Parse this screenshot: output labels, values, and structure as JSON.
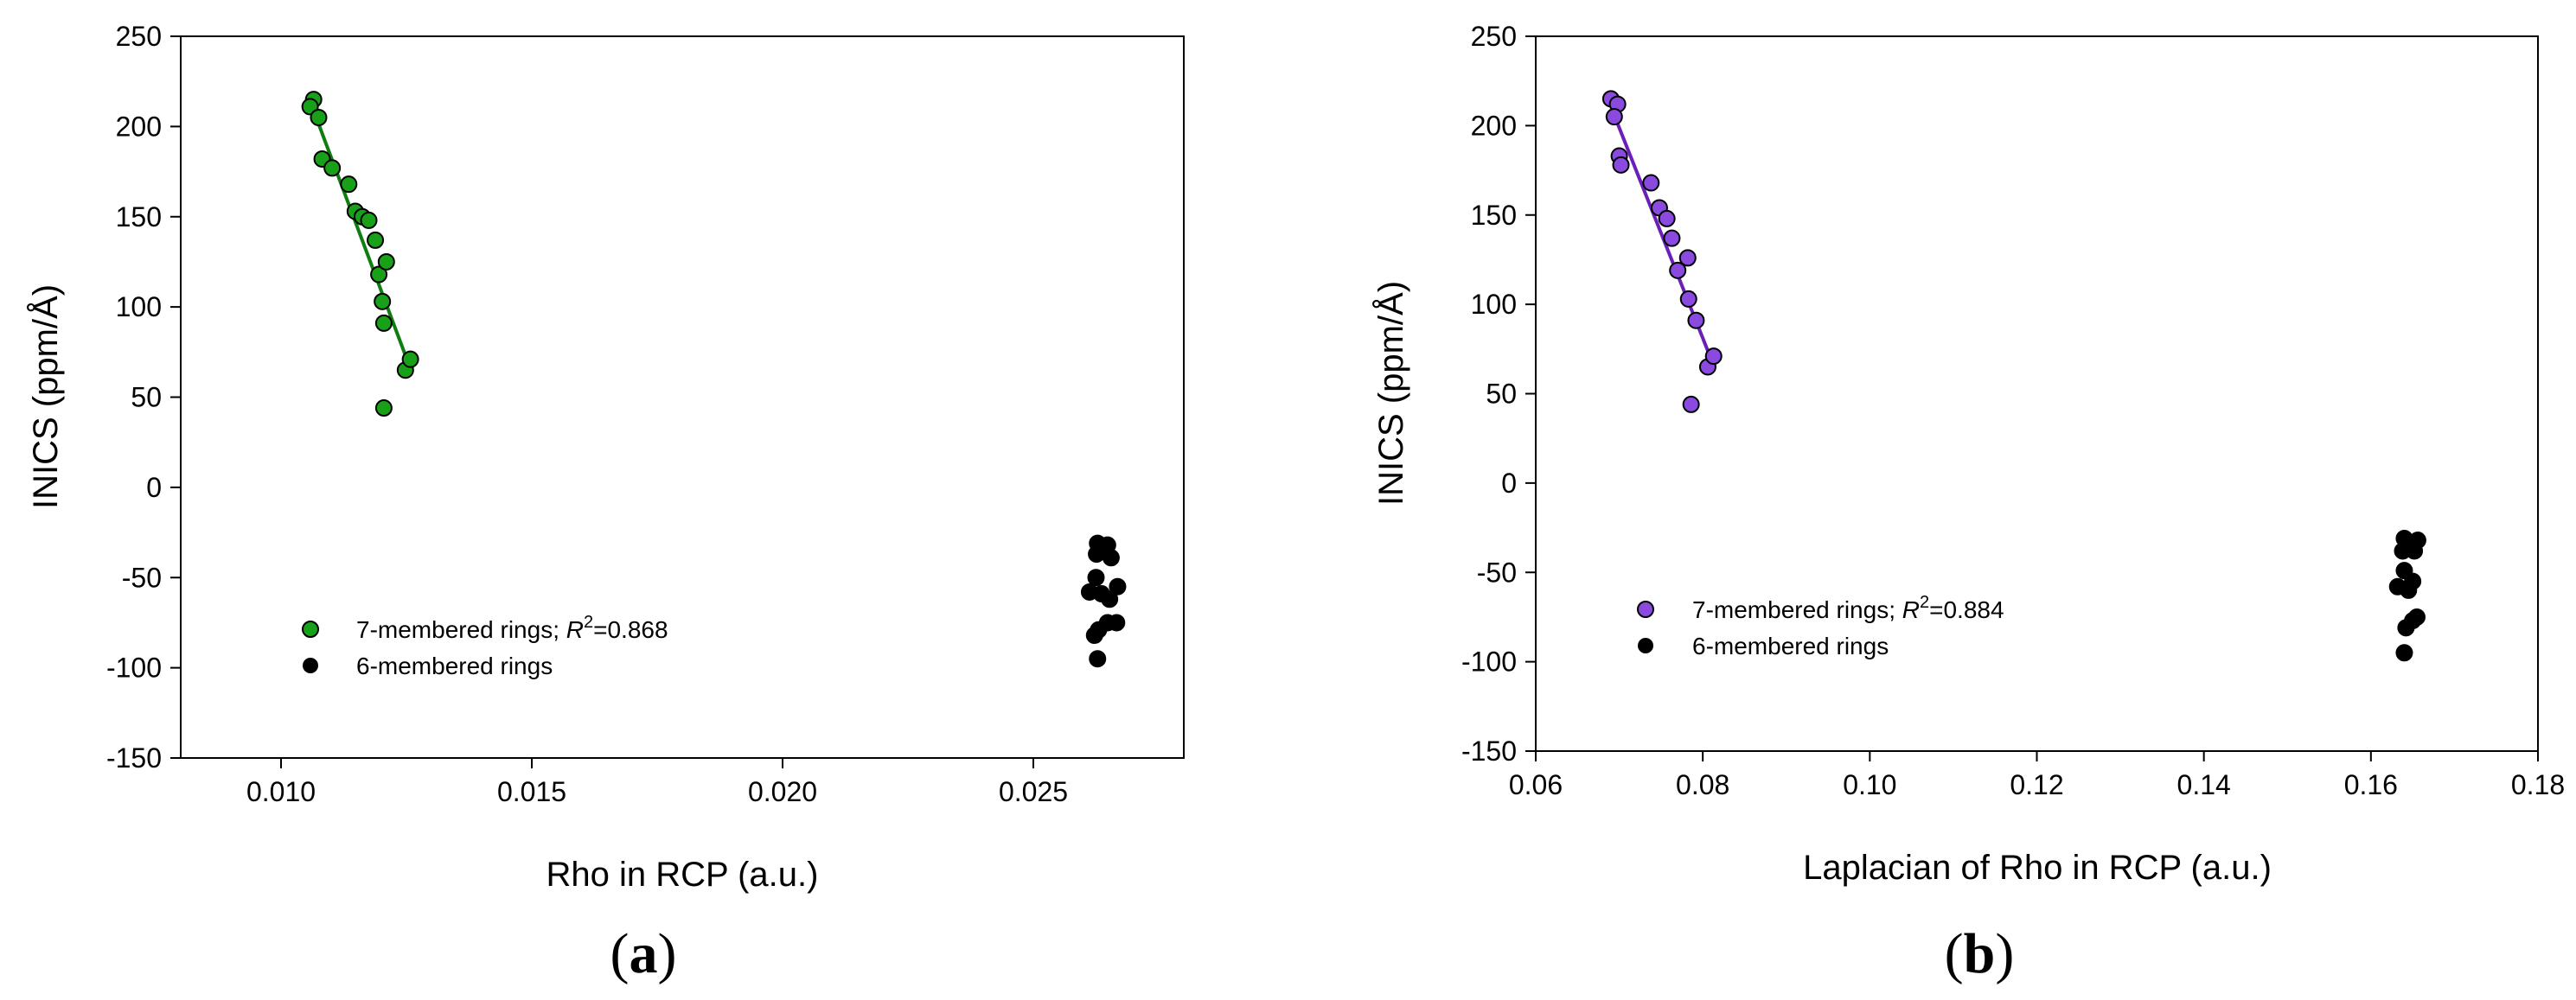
{
  "panels": {
    "a": {
      "label_open": "(",
      "label_letter": "a",
      "label_close": ")"
    },
    "b": {
      "label_open": "(",
      "label_letter": "b",
      "label_close": ")"
    }
  },
  "chart_data": [
    {
      "type": "scatter",
      "panel": "a",
      "xlabel": "Rho in RCP (a.u.)",
      "ylabel": "INICS (ppm/Å)",
      "xlim": [
        0.008,
        0.028
      ],
      "ylim": [
        -150,
        250
      ],
      "xticks": [
        0.01,
        0.015,
        0.02,
        0.025
      ],
      "xtick_labels": [
        "0.010",
        "0.015",
        "0.020",
        "0.025"
      ],
      "yticks": [
        -150,
        -100,
        -50,
        0,
        50,
        100,
        150,
        200,
        250
      ],
      "ytick_labels": [
        "-150",
        "-100",
        "-50",
        "0",
        "50",
        "100",
        "150",
        "200",
        "250"
      ],
      "legend_position": "lower-left",
      "series": [
        {
          "name": "7-membered rings",
          "legend_label": "7-membered rings; ",
          "r2_label": "R",
          "r2_sup": "2",
          "r2_value": "=0.868",
          "color": "#18a018",
          "fit_color": "#0f7d0f",
          "points": [
            [
              0.01065,
              215
            ],
            [
              0.01058,
              211
            ],
            [
              0.01075,
              205
            ],
            [
              0.01082,
              182
            ],
            [
              0.01102,
              177
            ],
            [
              0.01135,
              168
            ],
            [
              0.01148,
              153
            ],
            [
              0.01162,
              150
            ],
            [
              0.01175,
              148
            ],
            [
              0.01188,
              137
            ],
            [
              0.01195,
              118
            ],
            [
              0.0121,
              125
            ],
            [
              0.01202,
              103
            ],
            [
              0.01205,
              91
            ],
            [
              0.01248,
              65
            ],
            [
              0.01258,
              71
            ],
            [
              0.01205,
              44
            ]
          ],
          "fit_line": [
            [
              0.01062,
              211
            ],
            [
              0.01255,
              68
            ]
          ]
        },
        {
          "name": "6-membered rings",
          "legend_label": "6-membered rings",
          "color": "#000000",
          "points": [
            [
              0.02628,
              -31
            ],
            [
              0.02648,
              -32
            ],
            [
              0.02626,
              -37
            ],
            [
              0.02655,
              -39
            ],
            [
              0.02625,
              -50
            ],
            [
              0.02668,
              -55
            ],
            [
              0.02612,
              -58
            ],
            [
              0.02636,
              -59
            ],
            [
              0.02652,
              -62
            ],
            [
              0.02648,
              -75
            ],
            [
              0.02666,
              -75
            ],
            [
              0.0263,
              -79
            ],
            [
              0.02622,
              -82
            ],
            [
              0.02628,
              -95
            ]
          ]
        }
      ]
    },
    {
      "type": "scatter",
      "panel": "b",
      "xlabel": "Laplacian of Rho in RCP (a.u.)",
      "ylabel": "INICS (ppm/Å)",
      "xlim": [
        0.06,
        0.18
      ],
      "ylim": [
        -150,
        250
      ],
      "xticks": [
        0.06,
        0.08,
        0.1,
        0.12,
        0.14,
        0.16,
        0.18
      ],
      "xtick_labels": [
        "0.06",
        "0.08",
        "0.10",
        "0.12",
        "0.14",
        "0.16",
        "0.18"
      ],
      "yticks": [
        -150,
        -100,
        -50,
        0,
        50,
        100,
        150,
        200,
        250
      ],
      "ytick_labels": [
        "-150",
        "-100",
        "-50",
        "0",
        "50",
        "100",
        "150",
        "200",
        "250"
      ],
      "legend_position": "lower-left",
      "series": [
        {
          "name": "7-membered rings",
          "legend_label": "7-membered rings; ",
          "r2_label": "R",
          "r2_sup": "2",
          "r2_value": "=0.884",
          "color": "#8a4ae0",
          "fit_color": "#6a1fb8",
          "points": [
            [
              0.069,
              215
            ],
            [
              0.0698,
              212
            ],
            [
              0.0694,
              205
            ],
            [
              0.07,
              183
            ],
            [
              0.0702,
              178
            ],
            [
              0.0738,
              168
            ],
            [
              0.0748,
              154
            ],
            [
              0.0757,
              148
            ],
            [
              0.0763,
              137
            ],
            [
              0.077,
              119
            ],
            [
              0.0782,
              126
            ],
            [
              0.0783,
              103
            ],
            [
              0.0792,
              91
            ],
            [
              0.0806,
              65
            ],
            [
              0.0813,
              71
            ],
            [
              0.0786,
              44
            ]
          ],
          "fit_line": [
            [
              0.0693,
              207
            ],
            [
              0.0812,
              67
            ]
          ]
        },
        {
          "name": "6-membered rings",
          "legend_label": "6-membered rings",
          "color": "#000000",
          "points": [
            [
              0.164,
              -31
            ],
            [
              0.1656,
              -32
            ],
            [
              0.1652,
              -38
            ],
            [
              0.1638,
              -38
            ],
            [
              0.164,
              -49
            ],
            [
              0.165,
              -55
            ],
            [
              0.1632,
              -58
            ],
            [
              0.1645,
              -60
            ],
            [
              0.1655,
              -75
            ],
            [
              0.165,
              -77
            ],
            [
              0.1642,
              -81
            ],
            [
              0.164,
              -95
            ]
          ]
        }
      ]
    }
  ]
}
